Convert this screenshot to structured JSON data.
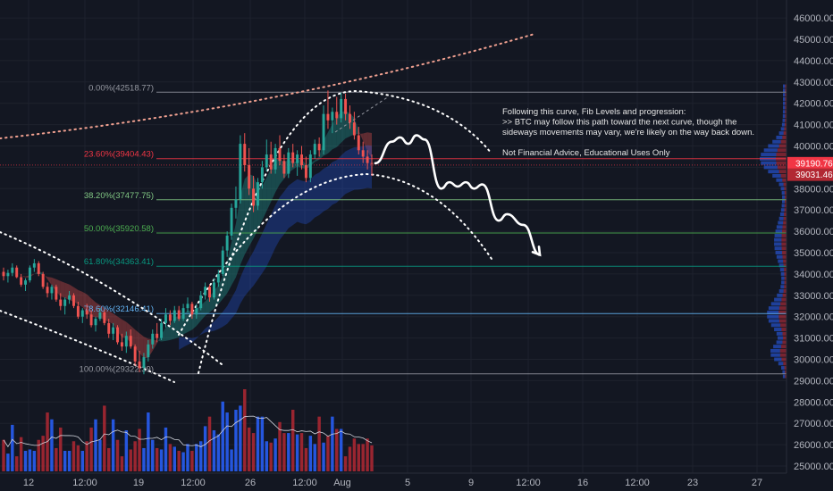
{
  "chart_data": {
    "type": "candlestick",
    "title": "",
    "x_ticks": [
      "12",
      "12:00",
      "19",
      "12:00",
      "26",
      "12:00",
      "Aug",
      "5",
      "9",
      "12:00",
      "16",
      "12:00",
      "23",
      "27"
    ],
    "y_ticks": [
      25000,
      26000,
      27000,
      28000,
      29000,
      30000,
      31000,
      32000,
      33000,
      34000,
      35000,
      36000,
      37000,
      38000,
      39000,
      40000,
      41000,
      42000,
      43000,
      44000,
      45000,
      46000
    ],
    "y_tick_labels": [
      "25000.00",
      "26000.00",
      "27000.00",
      "28000.00",
      "29000.00",
      "30000.00",
      "31000.00",
      "32000.00",
      "33000.00",
      "34000.00",
      "35000.00",
      "36000.00",
      "37000.00",
      "38000.00",
      "39000.00",
      "40000.00",
      "41000.00",
      "42000.00",
      "43000.00",
      "44000.00",
      "45000.00",
      "46000.00"
    ],
    "ylim": [
      24800,
      46300
    ],
    "fib_levels": [
      {
        "label": "0.00%(42518.77)",
        "value": 42518.77,
        "color": "#9598a1"
      },
      {
        "label": "23.60%(39404.43)",
        "value": 39404.43,
        "color": "#f23645"
      },
      {
        "label": "38.20%(37477.75)",
        "value": 37477.75,
        "color": "#81c784"
      },
      {
        "label": "50.00%(35920.58)",
        "value": 35920.58,
        "color": "#4caf50"
      },
      {
        "label": "61.80%(34363.41)",
        "value": 34363.41,
        "color": "#089981"
      },
      {
        "label": "78.60%(32146.41)",
        "value": 32146.41,
        "color": "#64b5f6"
      },
      {
        "label": "100.00%(29322.39)",
        "value": 29322.39,
        "color": "#9598a1"
      }
    ],
    "price_tags": [
      {
        "label": "39190.76",
        "value": 39190.76,
        "color": "#f23645"
      },
      {
        "label": "39031.46",
        "value": 39031.46,
        "color": "#b22833"
      }
    ],
    "price_line_value": 39190.76,
    "annotation": [
      "Following this curve, Fib Levels and progression:",
      ">> BTC may follow this path toward the next curve, though the",
      "sideways movements may vary, we're likely on the way back down.",
      "",
      "Not Financial Advice, Educational Uses Only"
    ],
    "candles": [
      [
        34100,
        34300,
        33700,
        33900
      ],
      [
        33900,
        34200,
        33600,
        34050
      ],
      [
        34050,
        34500,
        33900,
        34300
      ],
      [
        34300,
        34400,
        33800,
        33850
      ],
      [
        33850,
        34000,
        33400,
        33500
      ],
      [
        33500,
        33800,
        33200,
        33700
      ],
      [
        33700,
        34400,
        33600,
        34300
      ],
      [
        34300,
        34700,
        34100,
        34500
      ],
      [
        34500,
        34600,
        33900,
        34000
      ],
      [
        34000,
        34100,
        33300,
        33400
      ],
      [
        33400,
        33600,
        32900,
        33100
      ],
      [
        33100,
        33500,
        32800,
        33400
      ],
      [
        33400,
        33500,
        32700,
        32800
      ],
      [
        32800,
        33100,
        32300,
        32500
      ],
      [
        32500,
        32900,
        32100,
        32800
      ],
      [
        32800,
        33200,
        32600,
        33000
      ],
      [
        33000,
        33100,
        32400,
        32500
      ],
      [
        32500,
        32700,
        31900,
        32000
      ],
      [
        32000,
        32400,
        31700,
        32300
      ],
      [
        32300,
        32600,
        31900,
        32100
      ],
      [
        32100,
        32300,
        31500,
        31600
      ],
      [
        31600,
        32000,
        31300,
        31900
      ],
      [
        31900,
        32400,
        31800,
        32200
      ],
      [
        32200,
        32300,
        31600,
        31700
      ],
      [
        31700,
        31900,
        31000,
        31200
      ],
      [
        31200,
        31700,
        30900,
        31500
      ],
      [
        31500,
        31600,
        30700,
        30800
      ],
      [
        30800,
        31200,
        30400,
        30600
      ],
      [
        30600,
        31300,
        30300,
        31100
      ],
      [
        31100,
        31400,
        30500,
        30600
      ],
      [
        30600,
        30700,
        29700,
        29900
      ],
      [
        29900,
        30400,
        29400,
        29600
      ],
      [
        29600,
        30300,
        29300,
        30100
      ],
      [
        30100,
        30900,
        29900,
        30700
      ],
      [
        30700,
        31400,
        30500,
        31200
      ],
      [
        31200,
        31700,
        30800,
        31000
      ],
      [
        31000,
        31900,
        30900,
        31700
      ],
      [
        31700,
        32400,
        31500,
        32100
      ],
      [
        32100,
        32300,
        31600,
        31800
      ],
      [
        31800,
        32500,
        31700,
        32300
      ],
      [
        32300,
        32500,
        31800,
        31900
      ],
      [
        31900,
        32600,
        31800,
        32400
      ],
      [
        32400,
        32900,
        32200,
        32600
      ],
      [
        32600,
        32700,
        31900,
        32100
      ],
      [
        32100,
        32600,
        31900,
        32400
      ],
      [
        32400,
        33200,
        32300,
        33000
      ],
      [
        33000,
        33600,
        32800,
        33400
      ],
      [
        33400,
        33500,
        32700,
        32900
      ],
      [
        32900,
        33800,
        32800,
        33600
      ],
      [
        33600,
        34200,
        33400,
        34000
      ],
      [
        34000,
        35300,
        33900,
        35100
      ],
      [
        35100,
        36000,
        34800,
        35800
      ],
      [
        35800,
        37300,
        35600,
        37100
      ],
      [
        37100,
        38100,
        36600,
        37500
      ],
      [
        37500,
        40500,
        37300,
        40100
      ],
      [
        40100,
        40600,
        38800,
        39100
      ],
      [
        39100,
        39900,
        37700,
        38000
      ],
      [
        38000,
        38600,
        36900,
        37200
      ],
      [
        37200,
        38500,
        37000,
        38300
      ],
      [
        38300,
        39300,
        38000,
        39000
      ],
      [
        39000,
        40300,
        38800,
        39600
      ],
      [
        39600,
        40200,
        38700,
        38900
      ],
      [
        38900,
        40100,
        38700,
        39900
      ],
      [
        39900,
        40500,
        39100,
        39300
      ],
      [
        39300,
        39600,
        38500,
        38700
      ],
      [
        38700,
        39900,
        38500,
        39700
      ],
      [
        39700,
        40100,
        39000,
        39200
      ],
      [
        39200,
        39800,
        38600,
        39600
      ],
      [
        39600,
        40000,
        38900,
        39100
      ],
      [
        39100,
        39500,
        38300,
        38500
      ],
      [
        38500,
        39800,
        38300,
        39600
      ],
      [
        39600,
        40300,
        39400,
        40100
      ],
      [
        40100,
        40400,
        39500,
        39800
      ],
      [
        39800,
        41900,
        39600,
        41500
      ],
      [
        41500,
        42600,
        40800,
        41200
      ],
      [
        41200,
        41800,
        40600,
        41600
      ],
      [
        41600,
        42300,
        41000,
        41300
      ],
      [
        41300,
        42500,
        41100,
        42200
      ],
      [
        42200,
        42450,
        41200,
        41500
      ],
      [
        41500,
        41900,
        40800,
        41100
      ],
      [
        41100,
        41600,
        40300,
        40500
      ],
      [
        40500,
        40900,
        39600,
        39800
      ],
      [
        39800,
        40200,
        39200,
        39500
      ],
      [
        39500,
        39800,
        38900,
        39200
      ],
      [
        39200,
        39600,
        38600,
        39190
      ]
    ],
    "volumes": [
      23,
      13,
      34,
      11,
      25,
      15,
      16,
      15,
      23,
      26,
      43,
      38,
      17,
      32,
      15,
      15,
      22,
      19,
      15,
      22,
      32,
      38,
      23,
      48,
      17,
      38,
      23,
      11,
      30,
      16,
      22,
      31,
      17,
      43,
      23,
      17,
      16,
      32,
      20,
      18,
      15,
      14,
      20,
      15,
      20,
      22,
      33,
      40,
      30,
      27,
      51,
      43,
      16,
      45,
      48,
      60,
      32,
      28,
      40,
      40,
      22,
      21,
      24,
      36,
      28,
      28,
      45,
      27,
      28,
      17,
      26,
      20,
      40,
      21,
      26,
      40,
      31,
      31,
      11,
      18,
      24,
      20,
      20,
      24,
      19
    ],
    "projected_path": [
      [
        39190,
        0
      ],
      [
        40200,
        4
      ],
      [
        40400,
        6
      ],
      [
        40100,
        8
      ],
      [
        40500,
        10
      ],
      [
        40300,
        12
      ],
      [
        38000,
        16
      ],
      [
        38300,
        18
      ],
      [
        38100,
        20
      ],
      [
        38300,
        22
      ],
      [
        38000,
        24
      ],
      [
        38200,
        26
      ],
      [
        36500,
        30
      ],
      [
        36800,
        32
      ],
      [
        36300,
        36
      ],
      [
        34900,
        40
      ]
    ]
  }
}
